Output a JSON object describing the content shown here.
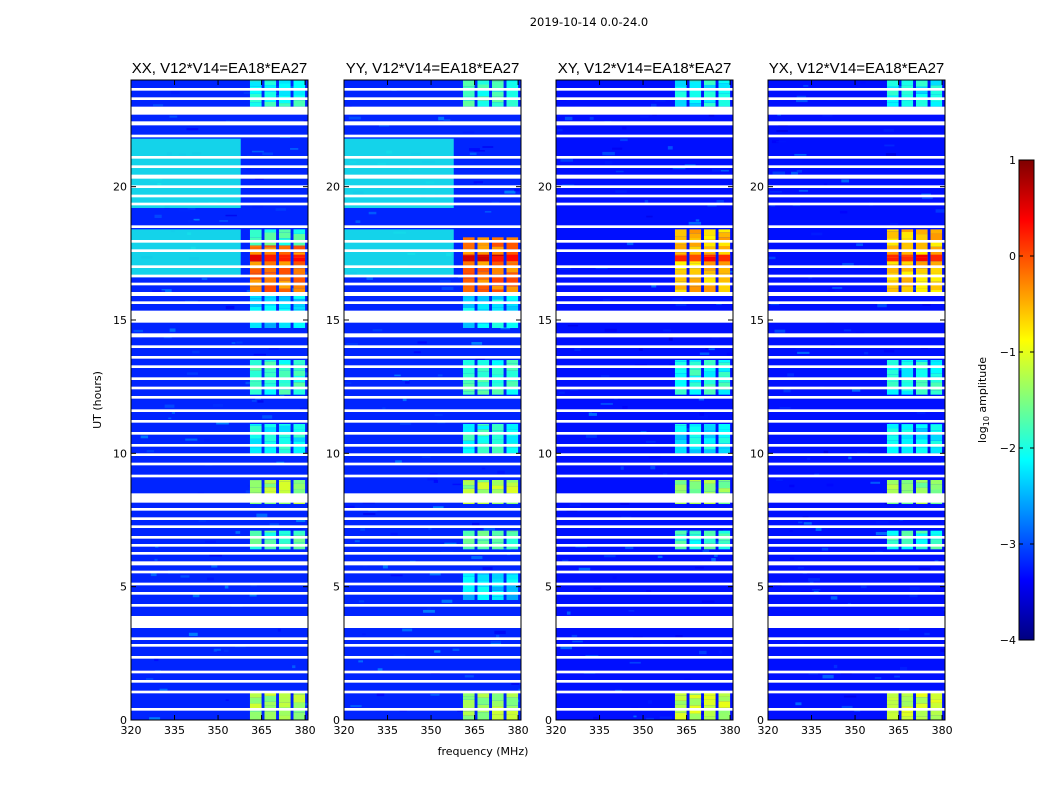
{
  "figure": {
    "suptitle": "2019-10-14 0.0-24.0",
    "xlabel": "frequency (MHz)",
    "ylabel": "UT (hours)",
    "colorbar_label_prefix": "log",
    "colorbar_label_sub": "10",
    "colorbar_label_suffix": " amplitude",
    "colorbar_ticks": [
      "1",
      "0",
      "−1",
      "−2",
      "−3",
      "−4"
    ],
    "colorbar_tick_values": [
      1,
      0,
      -1,
      -2,
      -3,
      -4
    ]
  },
  "chart_data": {
    "type": "heatmap",
    "colormap": "jet",
    "colormap_colors": [
      "#00007f",
      "#0000ff",
      "#007fff",
      "#00ffff",
      "#7fff7f",
      "#ffff00",
      "#ff7f00",
      "#ff0000",
      "#7f0000"
    ],
    "flagged_color": "#ffffff",
    "xlim": [
      320,
      381
    ],
    "ylim": [
      0,
      24
    ],
    "clim": [
      -4,
      1
    ],
    "x_ticks": [
      320,
      335,
      350,
      365,
      380
    ],
    "y_ticks": [
      0,
      5,
      10,
      15,
      20
    ],
    "rfi_band_mhz": [
      361,
      380
    ],
    "rfi_band_channels_mhz": [
      [
        361,
        365
      ],
      [
        366,
        370
      ],
      [
        371,
        375
      ],
      [
        376,
        380
      ]
    ],
    "flagged_intervals_hours": [
      [
        0.35,
        0.45
      ],
      [
        1.0,
        1.1
      ],
      [
        1.4,
        1.5
      ],
      [
        1.75,
        1.85
      ],
      [
        2.3,
        2.4
      ],
      [
        2.75,
        2.85
      ],
      [
        3.0,
        3.1
      ],
      [
        3.45,
        3.9
      ],
      [
        4.25,
        4.35
      ],
      [
        4.7,
        4.8
      ],
      [
        5.05,
        5.15
      ],
      [
        5.5,
        5.6
      ],
      [
        5.8,
        5.95
      ],
      [
        6.2,
        6.3
      ],
      [
        6.5,
        6.6
      ],
      [
        6.8,
        6.9
      ],
      [
        7.2,
        7.3
      ],
      [
        7.5,
        7.6
      ],
      [
        7.85,
        7.95
      ],
      [
        8.15,
        8.5
      ],
      [
        9.1,
        9.2
      ],
      [
        9.55,
        9.65
      ],
      [
        9.9,
        10.0
      ],
      [
        10.25,
        10.35
      ],
      [
        10.7,
        10.8
      ],
      [
        11.15,
        11.25
      ],
      [
        11.55,
        11.65
      ],
      [
        12.05,
        12.15
      ],
      [
        12.4,
        12.5
      ],
      [
        12.75,
        12.85
      ],
      [
        13.2,
        13.3
      ],
      [
        13.55,
        13.65
      ],
      [
        13.95,
        14.05
      ],
      [
        14.35,
        14.5
      ],
      [
        14.9,
        15.35
      ],
      [
        15.6,
        15.7
      ],
      [
        15.9,
        16.05
      ],
      [
        16.3,
        16.4
      ],
      [
        16.6,
        16.7
      ],
      [
        16.95,
        17.05
      ],
      [
        17.55,
        17.65
      ],
      [
        17.9,
        18.0
      ],
      [
        18.45,
        18.55
      ],
      [
        19.3,
        19.4
      ],
      [
        19.6,
        19.7
      ],
      [
        19.95,
        20.05
      ],
      [
        20.3,
        20.45
      ],
      [
        20.7,
        20.8
      ],
      [
        21.05,
        21.15
      ],
      [
        21.85,
        21.95
      ],
      [
        22.3,
        22.45
      ],
      [
        22.7,
        23.0
      ],
      [
        23.25,
        23.35
      ],
      [
        23.6,
        23.7
      ]
    ],
    "panels": [
      {
        "title": "XX, V12*V14=EA18*EA27",
        "background_level": -3.2,
        "rfi_episodes": [
          {
            "t": [
              0.0,
              1.05
            ],
            "level": -1.3
          },
          {
            "t": [
              6.4,
              7.1
            ],
            "level": -1.8
          },
          {
            "t": [
              8.1,
              9.0
            ],
            "level": -1.3
          },
          {
            "t": [
              10.0,
              11.1
            ],
            "level": -2.1
          },
          {
            "t": [
              12.2,
              13.5
            ],
            "level": -1.9
          },
          {
            "t": [
              14.7,
              15.9
            ],
            "level": -2.3
          },
          {
            "t": [
              16.0,
              17.8
            ],
            "level": -0.2
          },
          {
            "t": [
              17.2,
              17.45
            ],
            "level": 0.35
          },
          {
            "t": [
              17.8,
              18.4
            ],
            "level": -1.8
          },
          {
            "t": [
              23.0,
              24.0
            ],
            "level": -2.0
          }
        ],
        "broadband_bright_hours": [
          [
            16.6,
            18.4
          ],
          [
            19.2,
            21.8
          ]
        ],
        "broadband_level": -2.0
      },
      {
        "title": "YY, V12*V14=EA18*EA27",
        "background_level": -3.2,
        "rfi_episodes": [
          {
            "t": [
              0.0,
              1.05
            ],
            "level": -1.3
          },
          {
            "t": [
              4.5,
              5.5
            ],
            "level": -2.3
          },
          {
            "t": [
              6.4,
              7.1
            ],
            "level": -1.8
          },
          {
            "t": [
              8.1,
              9.0
            ],
            "level": -1.3
          },
          {
            "t": [
              10.0,
              11.1
            ],
            "level": -2.0
          },
          {
            "t": [
              12.2,
              13.5
            ],
            "level": -1.9
          },
          {
            "t": [
              14.7,
              15.9
            ],
            "level": -2.2
          },
          {
            "t": [
              16.0,
              18.1
            ],
            "level": -0.2
          },
          {
            "t": [
              17.2,
              17.45
            ],
            "level": 0.4
          },
          {
            "t": [
              23.0,
              24.0
            ],
            "level": -1.9
          }
        ],
        "broadband_bright_hours": [
          [
            16.6,
            18.4
          ],
          [
            19.2,
            21.8
          ]
        ],
        "broadband_level": -2.0
      },
      {
        "title": "XY, V12*V14=EA18*EA27",
        "background_level": -3.3,
        "rfi_episodes": [
          {
            "t": [
              0.0,
              1.05
            ],
            "level": -1.2
          },
          {
            "t": [
              6.4,
              7.1
            ],
            "level": -1.9
          },
          {
            "t": [
              8.1,
              9.0
            ],
            "level": -1.4
          },
          {
            "t": [
              10.0,
              11.1
            ],
            "level": -2.2
          },
          {
            "t": [
              12.2,
              13.5
            ],
            "level": -2.0
          },
          {
            "t": [
              16.0,
              18.4
            ],
            "level": -0.6
          },
          {
            "t": [
              17.2,
              17.45
            ],
            "level": 0.2
          },
          {
            "t": [
              23.0,
              24.0
            ],
            "level": -2.1
          }
        ],
        "broadband_bright_hours": [],
        "broadband_level": -3.0
      },
      {
        "title": "YX, V12*V14=EA18*EA27",
        "background_level": -3.3,
        "rfi_episodes": [
          {
            "t": [
              0.0,
              1.05
            ],
            "level": -1.2
          },
          {
            "t": [
              6.4,
              7.1
            ],
            "level": -1.9
          },
          {
            "t": [
              8.1,
              9.0
            ],
            "level": -1.4
          },
          {
            "t": [
              10.0,
              11.1
            ],
            "level": -2.2
          },
          {
            "t": [
              12.2,
              13.5
            ],
            "level": -2.0
          },
          {
            "t": [
              16.0,
              18.4
            ],
            "level": -0.6
          },
          {
            "t": [
              17.2,
              17.45
            ],
            "level": 0.25
          },
          {
            "t": [
              23.0,
              24.0
            ],
            "level": -2.1
          }
        ],
        "broadband_bright_hours": [],
        "broadband_level": -3.0
      }
    ]
  }
}
